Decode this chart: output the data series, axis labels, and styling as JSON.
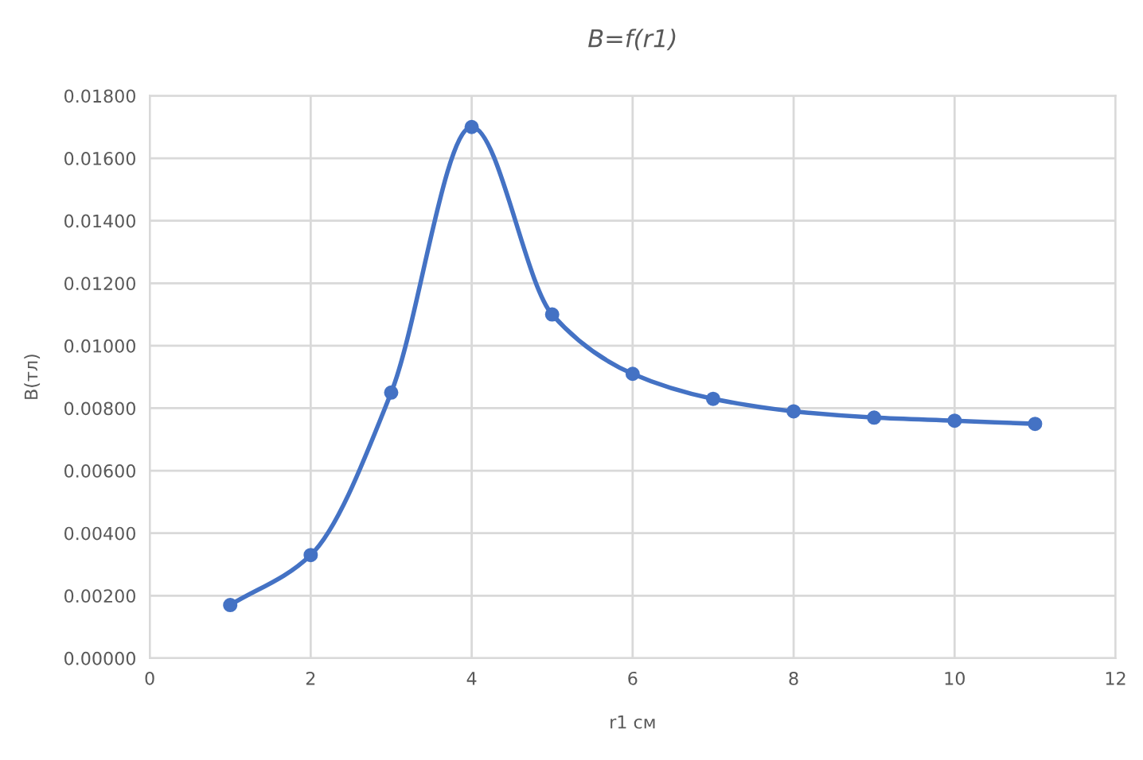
{
  "chart_data": {
    "type": "line",
    "title": "B=f(r1)",
    "xlabel": "r1 см",
    "ylabel": "B(тл)",
    "x": [
      1,
      2,
      3,
      4,
      5,
      6,
      7,
      8,
      9,
      10,
      11
    ],
    "series": [
      {
        "color": "#4472c4",
        "values": [
          0.0017,
          0.0033,
          0.0085,
          0.017,
          0.011,
          0.0091,
          0.0083,
          0.0079,
          0.0077,
          0.0076,
          0.0075
        ]
      }
    ],
    "xlim": [
      0,
      12
    ],
    "xticks": [
      0,
      2,
      4,
      6,
      8,
      10,
      12
    ],
    "ylim": [
      0,
      0.018
    ],
    "yticks": [
      {
        "value": 0,
        "label": "0.00000"
      },
      {
        "value": 0.002,
        "label": "0.00200"
      },
      {
        "value": 0.004,
        "label": "0.00400"
      },
      {
        "value": 0.006,
        "label": "0.00600"
      },
      {
        "value": 0.008,
        "label": "0.00800"
      },
      {
        "value": 0.01,
        "label": "0.01000"
      },
      {
        "value": 0.012,
        "label": "0.01200"
      },
      {
        "value": 0.014,
        "label": "0.01400"
      },
      {
        "value": 0.016,
        "label": "0.01600"
      },
      {
        "value": 0.018,
        "label": "0.01800"
      }
    ],
    "grid": true,
    "marker": "circle",
    "line_style": "solid",
    "legend": false
  }
}
